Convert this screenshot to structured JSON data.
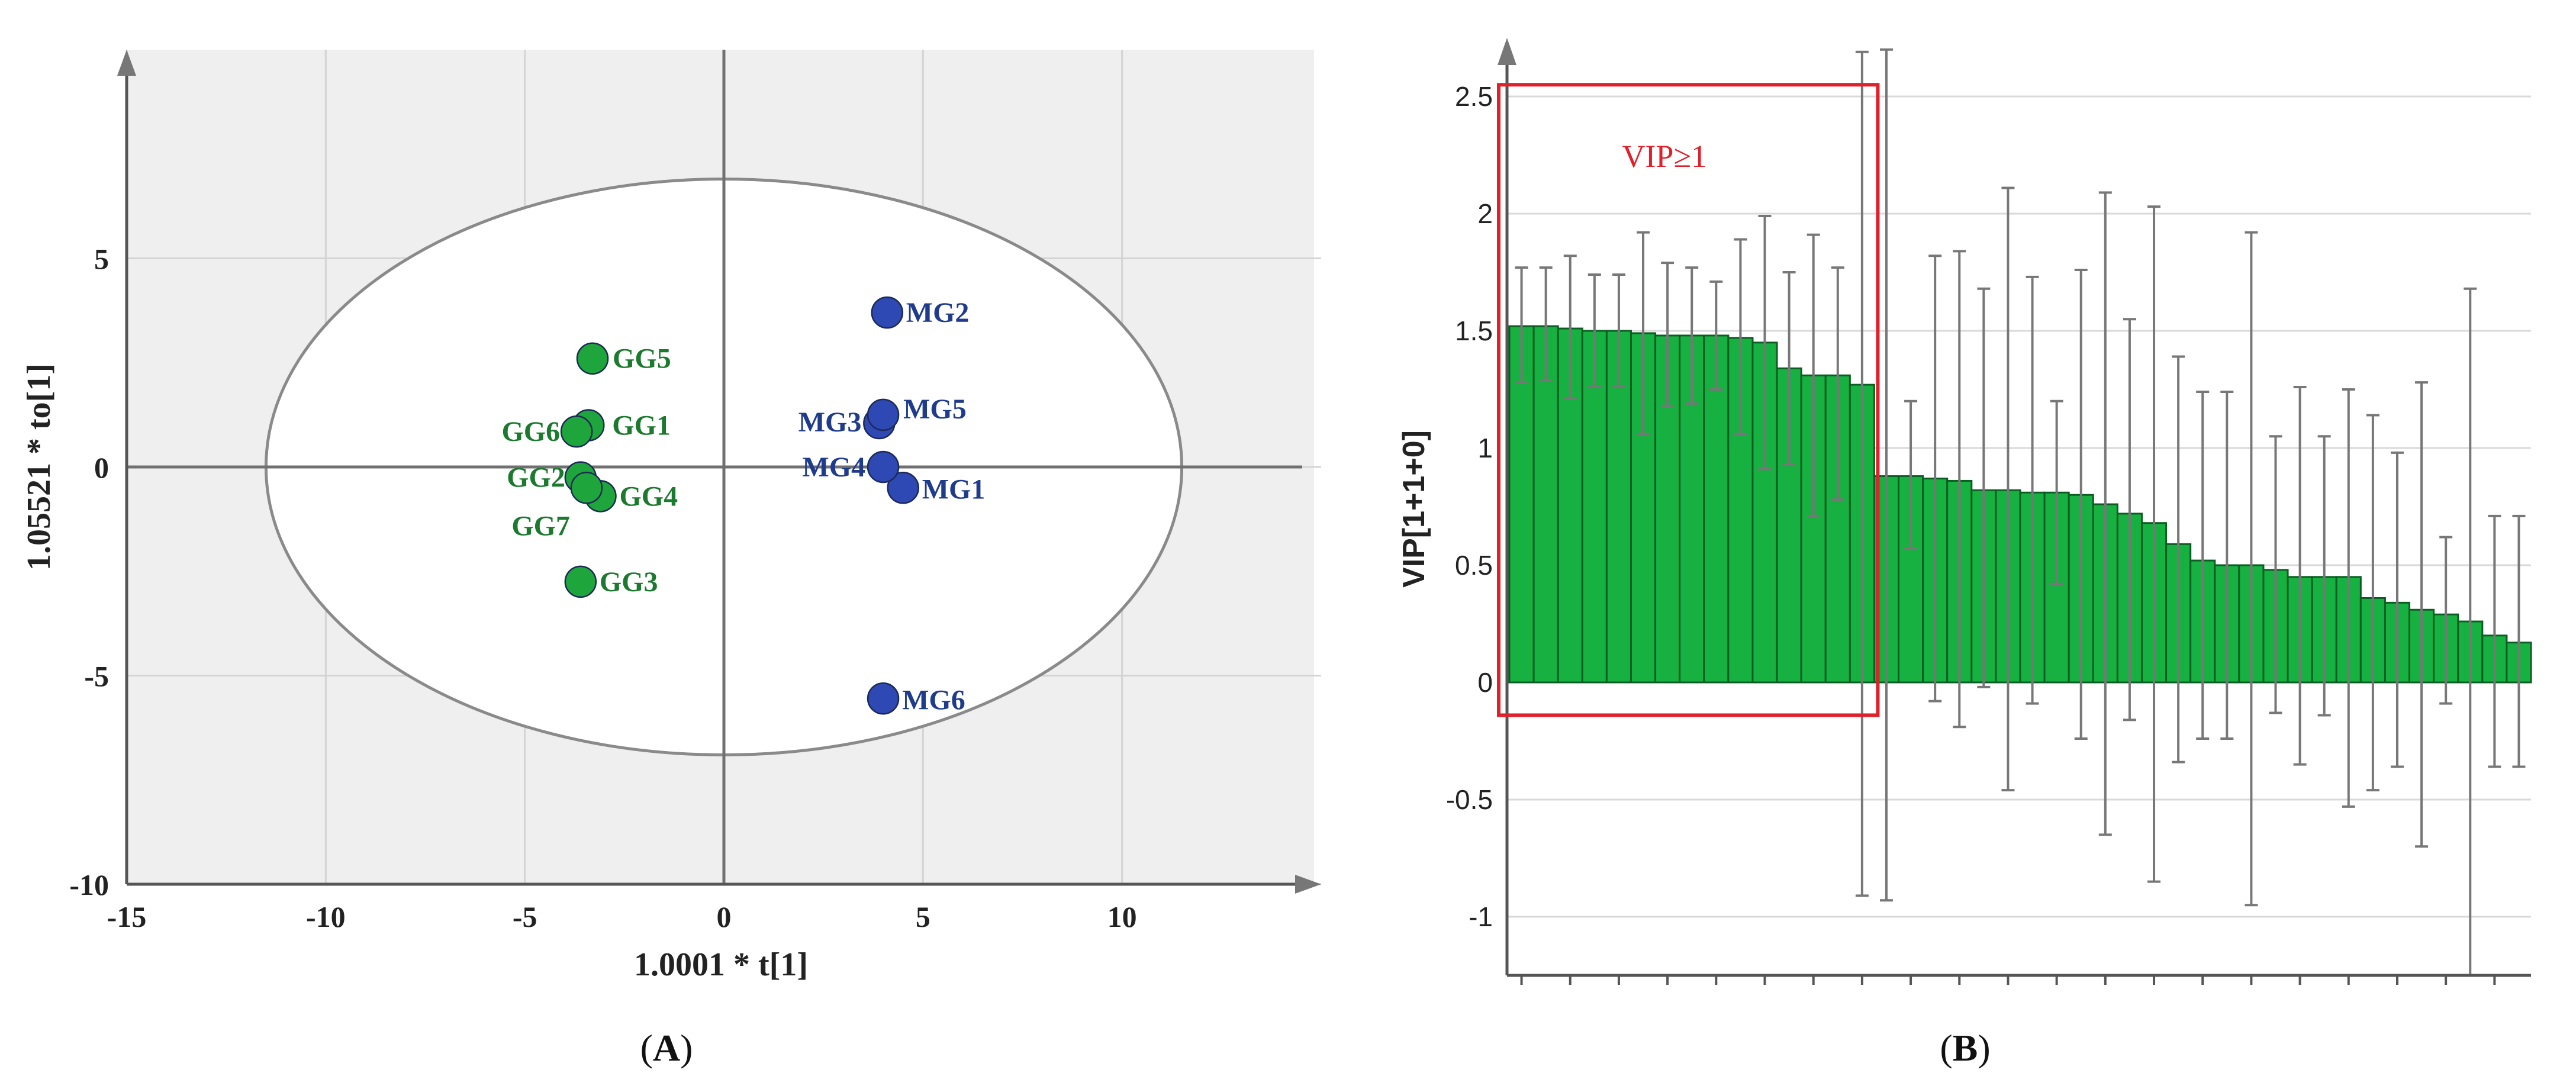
{
  "chart_data": [
    {
      "type": "scatter",
      "panel_label": "A",
      "xlabel": "1.0001 * t[1]",
      "ylabel": "1.05521 * to[1]",
      "xlim": [
        -15,
        15
      ],
      "ylim": [
        -10,
        10
      ],
      "xticks": [
        -15,
        -10,
        -5,
        0,
        5,
        10
      ],
      "yticks": [
        -10,
        -5,
        0,
        5
      ],
      "grid": true,
      "ellipse": {
        "center": [
          0,
          0
        ],
        "semi_axes": [
          11.5,
          6.9
        ]
      },
      "colors": {
        "GG": "#1ea53b",
        "MG": "#2e48b4",
        "GG_label": "#1b7a2e",
        "MG_label": "#1f3b8c",
        "background": "#efefef"
      },
      "series": [
        {
          "name": "GG",
          "points": [
            {
              "label": "GG1",
              "x": -3.4,
              "y": 1.0
            },
            {
              "label": "GG2",
              "x": -3.6,
              "y": -0.25
            },
            {
              "label": "GG3",
              "x": -3.6,
              "y": -2.75
            },
            {
              "label": "GG4",
              "x": -3.1,
              "y": -0.7
            },
            {
              "label": "GG5",
              "x": -3.3,
              "y": 2.6
            },
            {
              "label": "GG6",
              "x": -3.7,
              "y": 0.85
            },
            {
              "label": "GG7",
              "x": -3.45,
              "y": -0.5
            }
          ]
        },
        {
          "name": "MG",
          "points": [
            {
              "label": "MG1",
              "x": 4.5,
              "y": -0.5
            },
            {
              "label": "MG2",
              "x": 4.1,
              "y": 3.7
            },
            {
              "label": "MG3",
              "x": 3.9,
              "y": 1.05
            },
            {
              "label": "MG4",
              "x": 4.0,
              "y": 0.0
            },
            {
              "label": "MG5",
              "x": 4.0,
              "y": 1.25
            },
            {
              "label": "MG6",
              "x": 4.0,
              "y": -5.55
            }
          ]
        }
      ]
    },
    {
      "type": "bar",
      "panel_label": "B",
      "ylabel": "VIP[1+1+0]",
      "ylim": [
        -1.25,
        2.75
      ],
      "yticks": [
        -1,
        -0.5,
        0,
        0.5,
        1,
        1.5,
        2,
        2.5
      ],
      "ytick_labels": [
        "-1",
        "-0.5",
        "0",
        "0.5",
        "1",
        "1.5",
        "2",
        "2.5"
      ],
      "grid": true,
      "highlight_box": {
        "label": "VIP≥1",
        "from_bar": 1,
        "to_bar": 15,
        "y_range": [
          -0.14,
          2.55
        ],
        "color": "#e0202a"
      },
      "colors": {
        "bar": "#16b140",
        "bar_edge": "#0b5e22",
        "error_bar": "#777777"
      },
      "values": [
        1.52,
        1.52,
        1.51,
        1.5,
        1.5,
        1.49,
        1.48,
        1.48,
        1.48,
        1.47,
        1.45,
        1.34,
        1.31,
        1.31,
        1.27,
        0.88,
        0.88,
        0.87,
        0.86,
        0.82,
        0.82,
        0.81,
        0.81,
        0.8,
        0.76,
        0.72,
        0.68,
        0.59,
        0.52,
        0.5,
        0.5,
        0.48,
        0.45,
        0.45,
        0.45,
        0.36,
        0.34,
        0.31,
        0.29,
        0.26,
        0.2,
        0.17
      ],
      "error_upper": [
        1.77,
        1.77,
        1.82,
        1.74,
        1.74,
        1.92,
        1.79,
        1.77,
        1.71,
        1.89,
        1.99,
        1.75,
        1.91,
        1.77,
        2.69,
        2.7,
        1.2,
        1.82,
        1.84,
        1.68,
        2.11,
        1.73,
        1.2,
        1.76,
        2.09,
        1.55,
        2.03,
        1.39,
        1.24,
        1.24,
        1.92,
        1.05,
        1.26,
        1.05,
        1.25,
        1.14,
        0.98,
        1.28,
        0.62,
        1.68,
        0.71,
        0.71
      ],
      "error_lower": [
        1.28,
        1.29,
        1.21,
        1.26,
        1.26,
        1.06,
        1.18,
        1.19,
        1.25,
        1.06,
        0.91,
        0.93,
        0.71,
        0.78,
        -0.91,
        -0.93,
        0.57,
        -0.08,
        -0.19,
        -0.02,
        -0.46,
        -0.09,
        0.42,
        -0.24,
        -0.65,
        -0.16,
        -0.85,
        -0.34,
        -0.24,
        -0.24,
        -0.95,
        -0.13,
        -0.35,
        -0.14,
        -0.53,
        -0.46,
        -0.36,
        -0.7,
        -0.09,
        -1.25,
        -0.36,
        -0.36
      ]
    }
  ]
}
